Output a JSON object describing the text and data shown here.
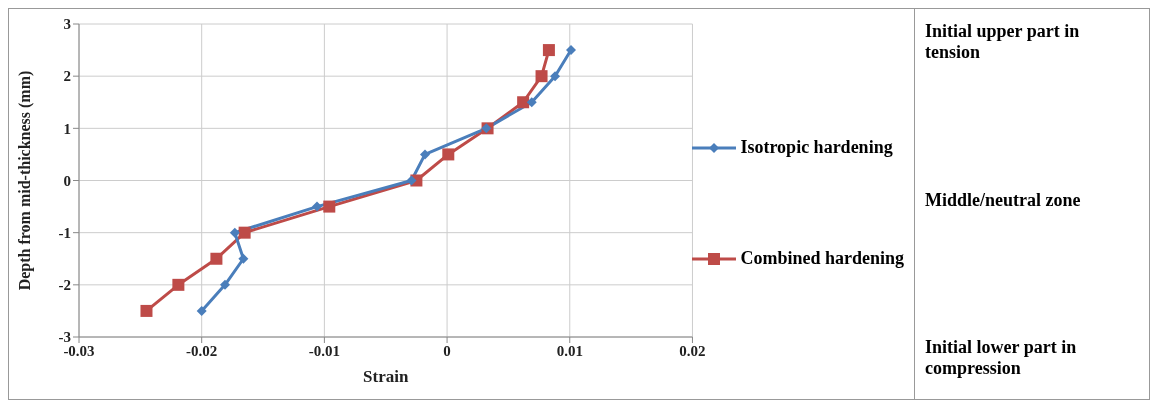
{
  "chart_data": {
    "type": "line",
    "xlabel": "Strain",
    "ylabel": "Depth from mid-thickness (mm)",
    "xlim": [
      -0.03,
      0.02
    ],
    "xticks": [
      -0.03,
      -0.02,
      -0.01,
      0,
      0.01,
      0.02
    ],
    "ylim": [
      -3,
      3
    ],
    "yticks": [
      -3,
      -2,
      -1,
      0,
      1,
      2,
      3
    ],
    "grid": true,
    "legend": "right",
    "line_style": "solid",
    "series": [
      {
        "name": "Isotropic hardening",
        "color": "#4a7ebb",
        "marker": "diamond",
        "x": [
          0.0101,
          0.0088,
          0.0069,
          0.0032,
          -0.0018,
          -0.0029,
          -0.0106,
          -0.0173,
          -0.0166,
          -0.0181,
          -0.02
        ],
        "values": [
          2.5,
          2,
          1.5,
          1,
          0.5,
          0,
          -0.5,
          -1,
          -1.5,
          -2,
          -2.5
        ]
      },
      {
        "name": "Combined  hardening",
        "color": "#be4b48",
        "marker": "square",
        "x": [
          0.0083,
          0.0077,
          0.0062,
          0.0033,
          0.0001,
          -0.0025,
          -0.0096,
          -0.0165,
          -0.0188,
          -0.0219,
          -0.0245
        ],
        "values": [
          2.5,
          2,
          1.5,
          1,
          0.5,
          0,
          -0.5,
          -1,
          -1.5,
          -2,
          -2.5
        ]
      }
    ],
    "annotations": [
      "Initial upper  part in tension",
      "Middle/neutral zone",
      "Initial lower part in compression"
    ]
  }
}
